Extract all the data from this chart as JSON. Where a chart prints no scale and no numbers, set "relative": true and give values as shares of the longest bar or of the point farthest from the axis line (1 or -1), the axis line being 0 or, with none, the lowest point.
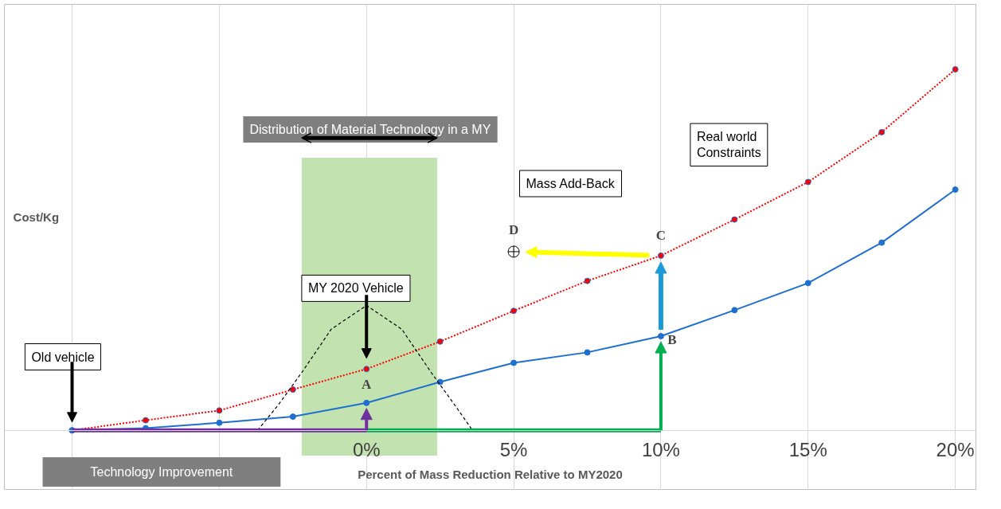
{
  "chart_data": {
    "type": "line",
    "relative": true,
    "xlabel": "Percent of Mass Reduction Relative to MY2020",
    "ylabel": "Cost/Kg",
    "xlim": [
      -12.3,
      20.7
    ],
    "xticks": [
      {
        "value": -10,
        "label": null
      },
      {
        "value": -5,
        "label": null
      },
      {
        "value": 0,
        "label": "0%"
      },
      {
        "value": 5,
        "label": "5%"
      },
      {
        "value": 10,
        "label": "10%"
      },
      {
        "value": 15,
        "label": "15%"
      },
      {
        "value": 20,
        "label": "20%"
      }
    ],
    "grid": "x",
    "series": [
      {
        "color": "#ff0000",
        "line_style": "dotted",
        "marker": "circle",
        "x": [
          -10,
          -7.5,
          -5,
          -2.5,
          0,
          2.5,
          5,
          7.5,
          10,
          12.5,
          15,
          17.5,
          20
        ],
        "values": [
          0,
          0.028,
          0.055,
          0.113,
          0.17,
          0.246,
          0.331,
          0.414,
          0.484,
          0.584,
          0.688,
          0.826,
          1
        ]
      },
      {
        "color": "#1f6fd1",
        "line_style": "solid",
        "marker": "circle",
        "x": [
          -10,
          -7.5,
          -5,
          -2.5,
          0,
          2.5,
          5,
          7.5,
          10,
          12.5,
          15,
          17.5,
          20
        ],
        "values": [
          0,
          0.006,
          0.021,
          0.038,
          0.076,
          0.134,
          0.187,
          0.216,
          0.261,
          0.333,
          0.408,
          0.52,
          0.667
        ]
      },
      {
        "color": "#000000",
        "line_style": "dashed",
        "marker": "none",
        "x": [
          -3.7,
          -3,
          -2.2,
          -1.2,
          0,
          1.2,
          2.2,
          3,
          3.6
        ],
        "values": [
          0,
          0.07,
          0.16,
          0.28,
          0.346,
          0.28,
          0.16,
          0.07,
          0
        ]
      },
      {
        "color": "#7030a0",
        "line_style": "solid",
        "marker": "none",
        "x": [
          -10,
          0
        ],
        "values": [
          0,
          0
        ]
      },
      {
        "color": "#00b050",
        "line_style": "solid",
        "marker": "none",
        "x": [
          0,
          10
        ],
        "values": [
          0,
          0
        ]
      }
    ],
    "bands": [
      {
        "axis": "x",
        "from": -2.2,
        "to": 2.4,
        "color": "#c2e3b0"
      }
    ],
    "annotations": [
      {
        "text": "A",
        "x": 0,
        "y": 0.076
      },
      {
        "text": "B",
        "x": 10,
        "y": 0.261
      },
      {
        "text": "C",
        "x": 10,
        "y": 0.484
      },
      {
        "text": "D",
        "x": 5,
        "y": 0.495
      },
      "Distribution of Material Technology in a MY",
      "Old vehicle",
      "MY 2020 Vehicle",
      "Mass Add-Back",
      "Real world\nConstraints",
      "Technology Improvement"
    ]
  }
}
